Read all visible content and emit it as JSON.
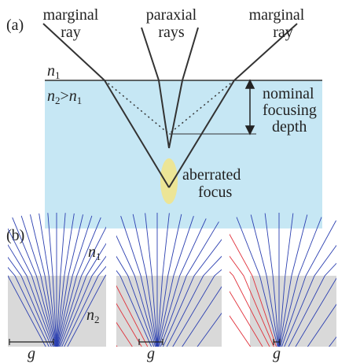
{
  "panel_a": {
    "label": "(a)",
    "left_ray": [
      "marginal",
      "ray"
    ],
    "center_rays": [
      "paraxial",
      "rays"
    ],
    "right_ray": [
      "marginal",
      "ray"
    ],
    "n1": {
      "symbol": "n",
      "sub": "1"
    },
    "n2": {
      "symbol": "n",
      "sub": "2",
      "relation": ">",
      "rhs_symbol": "n",
      "rhs_sub": "1"
    },
    "depth_label": [
      "nominal",
      "focusing",
      "depth"
    ],
    "focus_label": [
      "aberrated",
      "focus"
    ]
  },
  "panel_b": {
    "label": "(b)",
    "n1": {
      "symbol": "n",
      "sub": "1"
    },
    "n2": {
      "symbol": "n",
      "sub": "2"
    },
    "scale_labels": [
      "g",
      "g",
      "g"
    ]
  }
}
